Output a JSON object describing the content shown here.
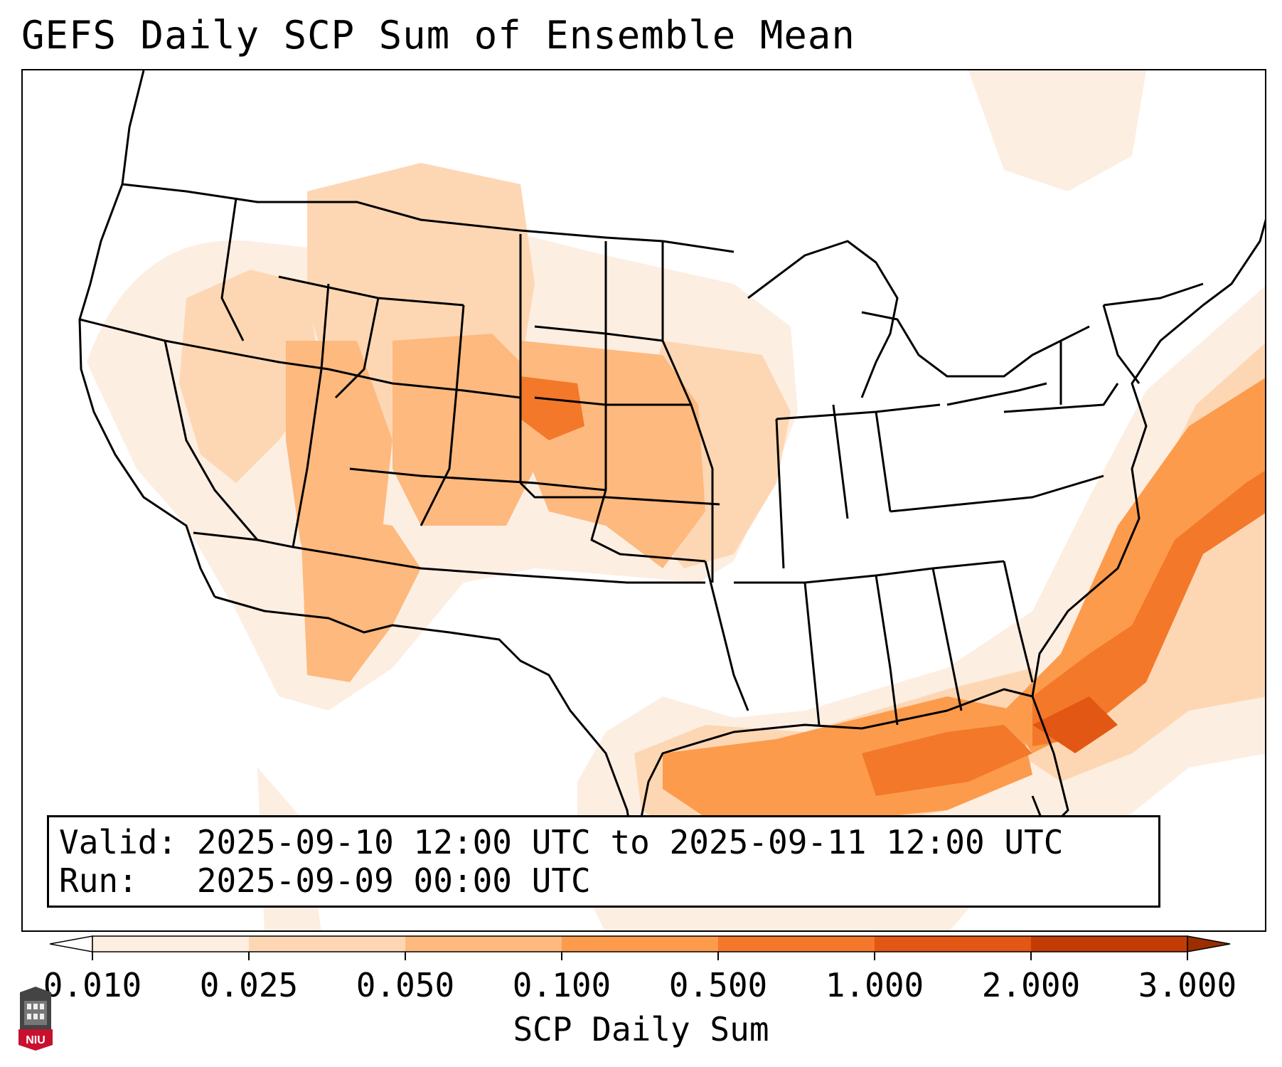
{
  "title": "GEFS Daily SCP Sum of Ensemble Mean",
  "info": {
    "valid_line": "Valid: 2025-09-10 12:00 UTC to 2025-09-11 12:00 UTC",
    "run_line": "Run:   2025-09-09 00:00 UTC"
  },
  "colorbar": {
    "label": "SCP Daily Sum",
    "ticks": [
      "0.010",
      "0.025",
      "0.050",
      "0.100",
      "0.500",
      "1.000",
      "2.000",
      "3.000"
    ],
    "colors": [
      "#fdeee2",
      "#fdd7b4",
      "#fdb97e",
      "#fd9b4c",
      "#f3782a",
      "#e25713",
      "#c23c04"
    ],
    "extend": "both"
  },
  "logo_text": "NIU"
}
